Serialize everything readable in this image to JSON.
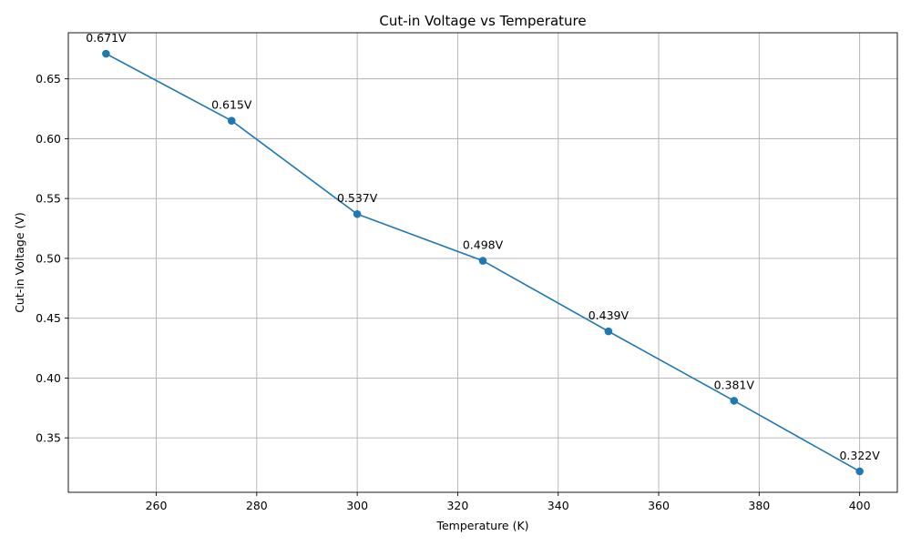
{
  "chart_data": {
    "type": "line",
    "title": "Cut-in Voltage vs Temperature",
    "xlabel": "Temperature (K)",
    "ylabel": "Cut-in Voltage (V)",
    "xlim": [
      242.5,
      407.5
    ],
    "ylim": [
      0.3045,
      0.6885
    ],
    "xticks": [
      260,
      280,
      300,
      320,
      340,
      360,
      380,
      400
    ],
    "xtick_labels": [
      "260",
      "280",
      "300",
      "320",
      "340",
      "360",
      "380",
      "400"
    ],
    "yticks": [
      0.35,
      0.4,
      0.45,
      0.5,
      0.55,
      0.6,
      0.65
    ],
    "ytick_labels": [
      "0.35",
      "0.40",
      "0.45",
      "0.50",
      "0.55",
      "0.60",
      "0.65"
    ],
    "grid": true,
    "series": [
      {
        "color": "#1f77b4",
        "marker": "circle",
        "x": [
          250,
          275,
          300,
          325,
          350,
          375,
          400
        ],
        "y": [
          0.671,
          0.615,
          0.537,
          0.498,
          0.439,
          0.381,
          0.322
        ],
        "labels": [
          "0.671V",
          "0.615V",
          "0.537V",
          "0.498V",
          "0.439V",
          "0.381V",
          "0.322V"
        ]
      }
    ]
  }
}
